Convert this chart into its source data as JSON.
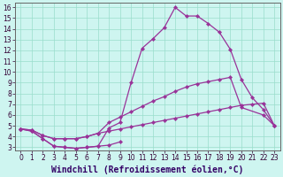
{
  "xlabel": "Windchill (Refroidissement éolien,°C)",
  "bg_color": "#cef5f0",
  "line_color": "#993399",
  "marker": "D",
  "markersize": 2.2,
  "linewidth": 0.9,
  "xlim_min": -0.5,
  "xlim_max": 23.5,
  "ylim_min": 2.7,
  "ylim_max": 16.4,
  "xticks": [
    0,
    1,
    2,
    3,
    4,
    5,
    6,
    7,
    8,
    9,
    10,
    11,
    12,
    13,
    14,
    15,
    16,
    17,
    18,
    19,
    20,
    21,
    22,
    23
  ],
  "yticks": [
    3,
    4,
    5,
    6,
    7,
    8,
    9,
    10,
    11,
    12,
    13,
    14,
    15,
    16
  ],
  "series1_x": [
    0,
    1,
    2,
    3,
    4,
    5,
    6,
    7,
    8,
    9
  ],
  "series1_y": [
    4.7,
    4.5,
    3.8,
    3.1,
    3.0,
    2.9,
    3.0,
    3.1,
    3.2,
    3.5
  ],
  "series2_x": [
    0,
    1,
    2,
    3,
    4,
    5,
    6,
    7,
    8,
    9,
    10,
    11,
    12,
    13,
    14,
    15,
    16,
    17,
    18,
    19,
    20,
    21,
    22,
    23
  ],
  "series2_y": [
    4.7,
    4.5,
    3.8,
    3.1,
    3.0,
    2.9,
    3.0,
    3.1,
    4.8,
    5.3,
    9.0,
    12.2,
    13.1,
    14.1,
    16.0,
    15.2,
    15.2,
    14.5,
    13.7,
    12.1,
    9.3,
    7.6,
    6.5,
    5.0
  ],
  "series3_x": [
    0,
    1,
    2,
    3,
    4,
    5,
    6,
    7,
    8,
    9,
    10,
    11,
    12,
    13,
    14,
    15,
    16,
    17,
    18,
    19,
    20,
    22,
    23
  ],
  "series3_y": [
    4.7,
    4.6,
    4.1,
    3.8,
    3.8,
    3.8,
    4.0,
    4.3,
    5.3,
    5.8,
    6.3,
    6.8,
    7.3,
    7.7,
    8.2,
    8.6,
    8.9,
    9.1,
    9.3,
    9.5,
    6.7,
    6.0,
    5.0
  ],
  "series4_x": [
    0,
    1,
    2,
    3,
    4,
    5,
    6,
    7,
    8,
    9,
    10,
    11,
    12,
    13,
    14,
    15,
    16,
    17,
    18,
    19,
    20,
    21,
    22,
    23
  ],
  "series4_y": [
    4.7,
    4.6,
    4.1,
    3.8,
    3.8,
    3.8,
    4.0,
    4.3,
    4.5,
    4.7,
    4.9,
    5.1,
    5.3,
    5.5,
    5.7,
    5.9,
    6.1,
    6.3,
    6.5,
    6.7,
    6.9,
    7.0,
    7.1,
    5.0
  ],
  "grid_color": "#99ddcc",
  "tick_labelsize": 5.5,
  "xlabel_fontsize": 7.0
}
